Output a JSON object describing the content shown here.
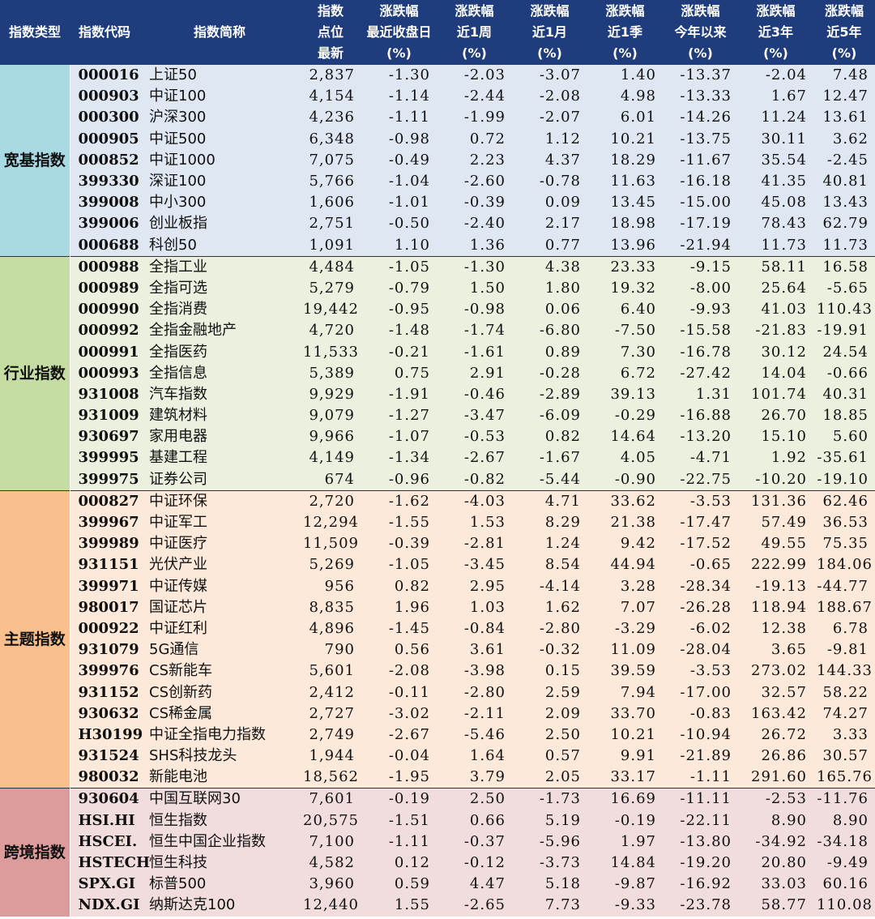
{
  "headers": [
    "指数类型",
    "指数代码",
    "指数简称",
    "指数\n点位\n最新",
    "涨跌幅\n最近收盘日\n(%)",
    "涨跌幅\n近1周\n(%)",
    "涨跌幅\n近1月\n(%)",
    "涨跌幅\n近1季\n(%)",
    "涨跌幅\n今年以来\n(%)",
    "涨跌幅\n近3年\n(%)",
    "涨跌幅\n近5年\n(%)"
  ],
  "groups": [
    {
      "category": "宽基指数",
      "rows": [
        [
          "000016",
          "上证50",
          "2,837",
          "-1.30",
          "-2.03",
          "-3.07",
          "1.40",
          "-13.37",
          "-2.04",
          "7.48"
        ],
        [
          "000903",
          "中证100",
          "4,154",
          "-1.14",
          "-2.44",
          "-2.08",
          "4.98",
          "-13.33",
          "1.67",
          "12.47"
        ],
        [
          "000300",
          "沪深300",
          "4,236",
          "-1.11",
          "-1.99",
          "-2.07",
          "6.01",
          "-14.26",
          "11.24",
          "13.61"
        ],
        [
          "000905",
          "中证500",
          "6,348",
          "-0.98",
          "0.72",
          "1.12",
          "10.21",
          "-13.75",
          "30.11",
          "3.62"
        ],
        [
          "000852",
          "中证1000",
          "7,075",
          "-0.49",
          "2.23",
          "4.37",
          "18.29",
          "-11.67",
          "35.54",
          "-2.45"
        ],
        [
          "399330",
          "深证100",
          "5,766",
          "-1.04",
          "-2.60",
          "-0.78",
          "11.63",
          "-16.18",
          "41.35",
          "40.81"
        ],
        [
          "399008",
          "中小300",
          "1,606",
          "-1.01",
          "-0.39",
          "0.09",
          "13.45",
          "-15.00",
          "45.08",
          "13.43"
        ],
        [
          "399006",
          "创业板指",
          "2,751",
          "-0.50",
          "-2.40",
          "2.17",
          "18.98",
          "-17.19",
          "78.43",
          "62.79"
        ],
        [
          "000688",
          "科创50",
          "1,091",
          "1.10",
          "1.36",
          "0.77",
          "13.96",
          "-21.94",
          "11.73",
          "11.73"
        ]
      ]
    },
    {
      "category": "行业指数",
      "rows": [
        [
          "000988",
          "全指工业",
          "4,484",
          "-1.05",
          "-1.30",
          "4.38",
          "23.33",
          "-9.15",
          "58.11",
          "16.58"
        ],
        [
          "000989",
          "全指可选",
          "5,279",
          "-0.79",
          "1.50",
          "1.80",
          "19.32",
          "-8.00",
          "25.64",
          "-5.65"
        ],
        [
          "000990",
          "全指消费",
          "19,442",
          "-0.95",
          "-0.98",
          "0.06",
          "6.40",
          "-9.93",
          "41.03",
          "110.43"
        ],
        [
          "000992",
          "全指金融地产",
          "4,720",
          "-1.48",
          "-1.74",
          "-6.80",
          "-7.50",
          "-15.58",
          "-21.83",
          "-19.91"
        ],
        [
          "000991",
          "全指医药",
          "11,533",
          "-0.21",
          "-1.61",
          "0.89",
          "7.30",
          "-16.78",
          "30.12",
          "24.54"
        ],
        [
          "000993",
          "全指信息",
          "5,389",
          "0.75",
          "2.91",
          "-0.28",
          "6.72",
          "-27.42",
          "14.04",
          "-0.66"
        ],
        [
          "931008",
          "汽车指数",
          "9,929",
          "-1.91",
          "-0.46",
          "-2.89",
          "39.13",
          "1.31",
          "101.74",
          "40.31"
        ],
        [
          "931009",
          "建筑材料",
          "9,079",
          "-1.27",
          "-3.47",
          "-6.09",
          "-0.29",
          "-16.88",
          "26.70",
          "18.85"
        ],
        [
          "930697",
          "家用电器",
          "9,966",
          "-1.07",
          "-0.53",
          "0.82",
          "14.64",
          "-13.20",
          "15.10",
          "5.60"
        ],
        [
          "399995",
          "基建工程",
          "4,149",
          "-1.34",
          "-2.67",
          "-1.67",
          "4.05",
          "-4.71",
          "1.92",
          "-35.61"
        ],
        [
          "399975",
          "证券公司",
          "674",
          "-0.96",
          "-0.82",
          "-5.44",
          "-0.90",
          "-22.75",
          "-10.20",
          "-19.10"
        ]
      ]
    },
    {
      "category": "主题指数",
      "rows": [
        [
          "000827",
          "中证环保",
          "2,720",
          "-1.62",
          "-4.03",
          "4.71",
          "33.62",
          "-3.53",
          "131.36",
          "62.46"
        ],
        [
          "399967",
          "中证军工",
          "12,294",
          "-1.55",
          "1.53",
          "8.29",
          "21.38",
          "-17.47",
          "57.49",
          "36.53"
        ],
        [
          "399989",
          "中证医疗",
          "11,509",
          "-0.39",
          "-2.81",
          "1.24",
          "9.42",
          "-17.52",
          "49.55",
          "75.35"
        ],
        [
          "931151",
          "光伏产业",
          "5,269",
          "-1.05",
          "-3.45",
          "8.54",
          "44.94",
          "-0.65",
          "222.99",
          "184.06"
        ],
        [
          "399971",
          "中证传媒",
          "956",
          "0.82",
          "2.95",
          "-4.14",
          "3.28",
          "-28.34",
          "-19.13",
          "-44.77"
        ],
        [
          "980017",
          "国证芯片",
          "8,835",
          "1.96",
          "1.03",
          "1.62",
          "7.07",
          "-26.28",
          "118.94",
          "188.67"
        ],
        [
          "000922",
          "中证红利",
          "4,896",
          "-1.45",
          "-0.84",
          "-2.80",
          "-3.29",
          "-6.02",
          "12.38",
          "6.78"
        ],
        [
          "931079",
          "5G通信",
          "790",
          "0.56",
          "3.61",
          "-0.32",
          "11.09",
          "-28.04",
          "3.65",
          "-9.81"
        ],
        [
          "399976",
          "CS新能车",
          "5,601",
          "-2.08",
          "-3.98",
          "0.15",
          "39.59",
          "-3.53",
          "273.02",
          "144.33"
        ],
        [
          "931152",
          "CS创新药",
          "2,412",
          "-0.11",
          "-2.80",
          "2.59",
          "7.94",
          "-17.00",
          "32.57",
          "58.22"
        ],
        [
          "930632",
          "CS稀金属",
          "2,727",
          "-3.02",
          "-2.11",
          "2.09",
          "33.70",
          "-0.83",
          "163.42",
          "74.27"
        ],
        [
          "H30199",
          "中证全指电力指数",
          "2,749",
          "-2.67",
          "-5.46",
          "2.50",
          "10.21",
          "-10.94",
          "26.72",
          "3.33"
        ],
        [
          "931524",
          "SHS科技龙头",
          "1,944",
          "-0.04",
          "1.64",
          "0.57",
          "9.91",
          "-21.89",
          "26.86",
          "30.57"
        ],
        [
          "980032",
          "新能电池",
          "18,562",
          "-1.95",
          "3.79",
          "2.05",
          "33.17",
          "-1.11",
          "291.60",
          "165.76"
        ]
      ]
    },
    {
      "category": "跨境指数",
      "rows": [
        [
          "930604",
          "中国互联网30",
          "7,601",
          "-0.19",
          "2.50",
          "-1.73",
          "16.69",
          "-11.11",
          "-2.53",
          "-11.76"
        ],
        [
          "HSI.HI",
          "恒生指数",
          "20,575",
          "-1.51",
          "0.66",
          "5.19",
          "-0.19",
          "-22.11",
          "8.90",
          "8.90"
        ],
        [
          "HSCEI.",
          "恒生中国企业指数",
          "7,100",
          "-1.11",
          "-0.37",
          "-5.96",
          "1.97",
          "-13.80",
          "-34.92",
          "-34.18"
        ],
        [
          "HSTECH",
          "恒生科技",
          "4,582",
          "0.12",
          "-0.12",
          "-3.73",
          "14.84",
          "-19.20",
          "20.80",
          "-9.49"
        ],
        [
          "SPX.GI",
          "标普500",
          "3,960",
          "0.59",
          "4.47",
          "5.18",
          "-9.87",
          "-16.92",
          "33.03",
          "60.16"
        ],
        [
          "NDX.GI",
          "纳斯达克100",
          "12,440",
          "1.55",
          "-2.65",
          "7.73",
          "-9.33",
          "-23.78",
          "58.77",
          "110.08"
        ]
      ]
    }
  ]
}
